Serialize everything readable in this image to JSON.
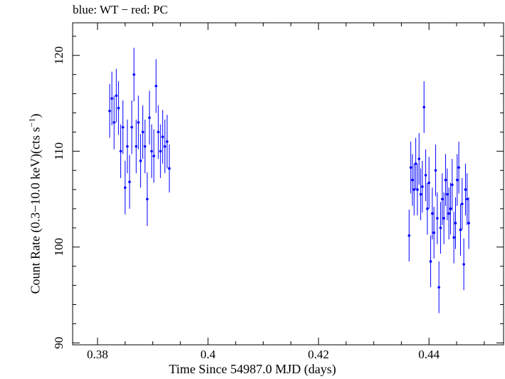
{
  "chart_data": {
    "type": "scatter",
    "title": "blue: WT − red: PC",
    "xlabel": "Time Since 54987.0 MJD (days)",
    "ylabel_main": "Count Rate (0.3−10.0 keV)(cts s",
    "ylabel_sup": "−1",
    "ylabel_close": ")",
    "xlim": [
      0.3755,
      0.4535
    ],
    "ylim": [
      89.8,
      123.4
    ],
    "xticks": [
      0.38,
      0.4,
      0.42,
      0.44
    ],
    "xtick_labels": [
      "0.38",
      "0.4",
      "0.42",
      "0.44"
    ],
    "yticks": [
      90,
      100,
      110,
      120
    ],
    "ytick_labels": [
      "90",
      "100",
      "110",
      "120"
    ],
    "grid": false,
    "series": [
      {
        "color": "#0000ff",
        "x": [
          0.3822,
          0.3826,
          0.383,
          0.3834,
          0.3838,
          0.3842,
          0.3846,
          0.385,
          0.3854,
          0.3858,
          0.3862,
          0.3866,
          0.387,
          0.3874,
          0.3878,
          0.3882,
          0.3886,
          0.389,
          0.3894,
          0.3898,
          0.3902,
          0.3906,
          0.391,
          0.3914,
          0.3918,
          0.3922,
          0.3926,
          0.393,
          0.4364,
          0.4367,
          0.437,
          0.4373,
          0.4376,
          0.4379,
          0.4382,
          0.4385,
          0.4388,
          0.4391,
          0.4394,
          0.4397,
          0.44,
          0.4403,
          0.4406,
          0.4409,
          0.4412,
          0.4415,
          0.4418,
          0.4421,
          0.4424,
          0.4427,
          0.443,
          0.4433,
          0.4436,
          0.4439,
          0.4442,
          0.4445,
          0.4448,
          0.4451,
          0.4454,
          0.4457,
          0.446,
          0.4463,
          0.4466,
          0.4469,
          0.4472
        ],
        "y": [
          114.2,
          115.5,
          113.0,
          115.8,
          114.5,
          110.0,
          112.5,
          106.2,
          110.5,
          106.8,
          112.5,
          118.0,
          110.5,
          113.0,
          109.0,
          112.0,
          110.5,
          105.0,
          113.5,
          110.0,
          109.5,
          116.8,
          112.0,
          110.0,
          111.5,
          110.5,
          111.0,
          108.2,
          101.2,
          108.3,
          107.0,
          106.0,
          108.7,
          106.0,
          109.2,
          105.5,
          106.3,
          114.6,
          107.5,
          104.0,
          106.7,
          98.5,
          103.5,
          101.5,
          108.0,
          103.0,
          95.8,
          102.0,
          105.0,
          103.0,
          107.0,
          105.5,
          103.5,
          104.0,
          106.5,
          101.0,
          102.5,
          107.0,
          108.3,
          101.8,
          104.5,
          98.2,
          106.0,
          105.0,
          102.5
        ],
        "yerr": [
          2.8,
          2.8,
          2.8,
          2.8,
          2.8,
          2.8,
          2.8,
          2.8,
          2.8,
          2.8,
          2.8,
          2.8,
          2.8,
          2.8,
          2.8,
          2.8,
          2.8,
          2.8,
          2.8,
          2.8,
          2.8,
          2.8,
          2.8,
          2.8,
          2.8,
          2.8,
          2.8,
          2.5,
          2.7,
          2.7,
          2.7,
          2.7,
          2.7,
          2.7,
          2.7,
          2.7,
          2.7,
          2.7,
          2.7,
          2.7,
          2.7,
          2.7,
          2.7,
          2.7,
          2.7,
          2.7,
          2.7,
          2.7,
          2.7,
          2.7,
          2.7,
          2.7,
          2.7,
          2.7,
          2.7,
          2.7,
          2.7,
          2.7,
          2.7,
          2.7,
          2.7,
          2.7,
          2.7,
          2.7,
          2.7
        ],
        "xerr": 0.0002
      }
    ]
  }
}
